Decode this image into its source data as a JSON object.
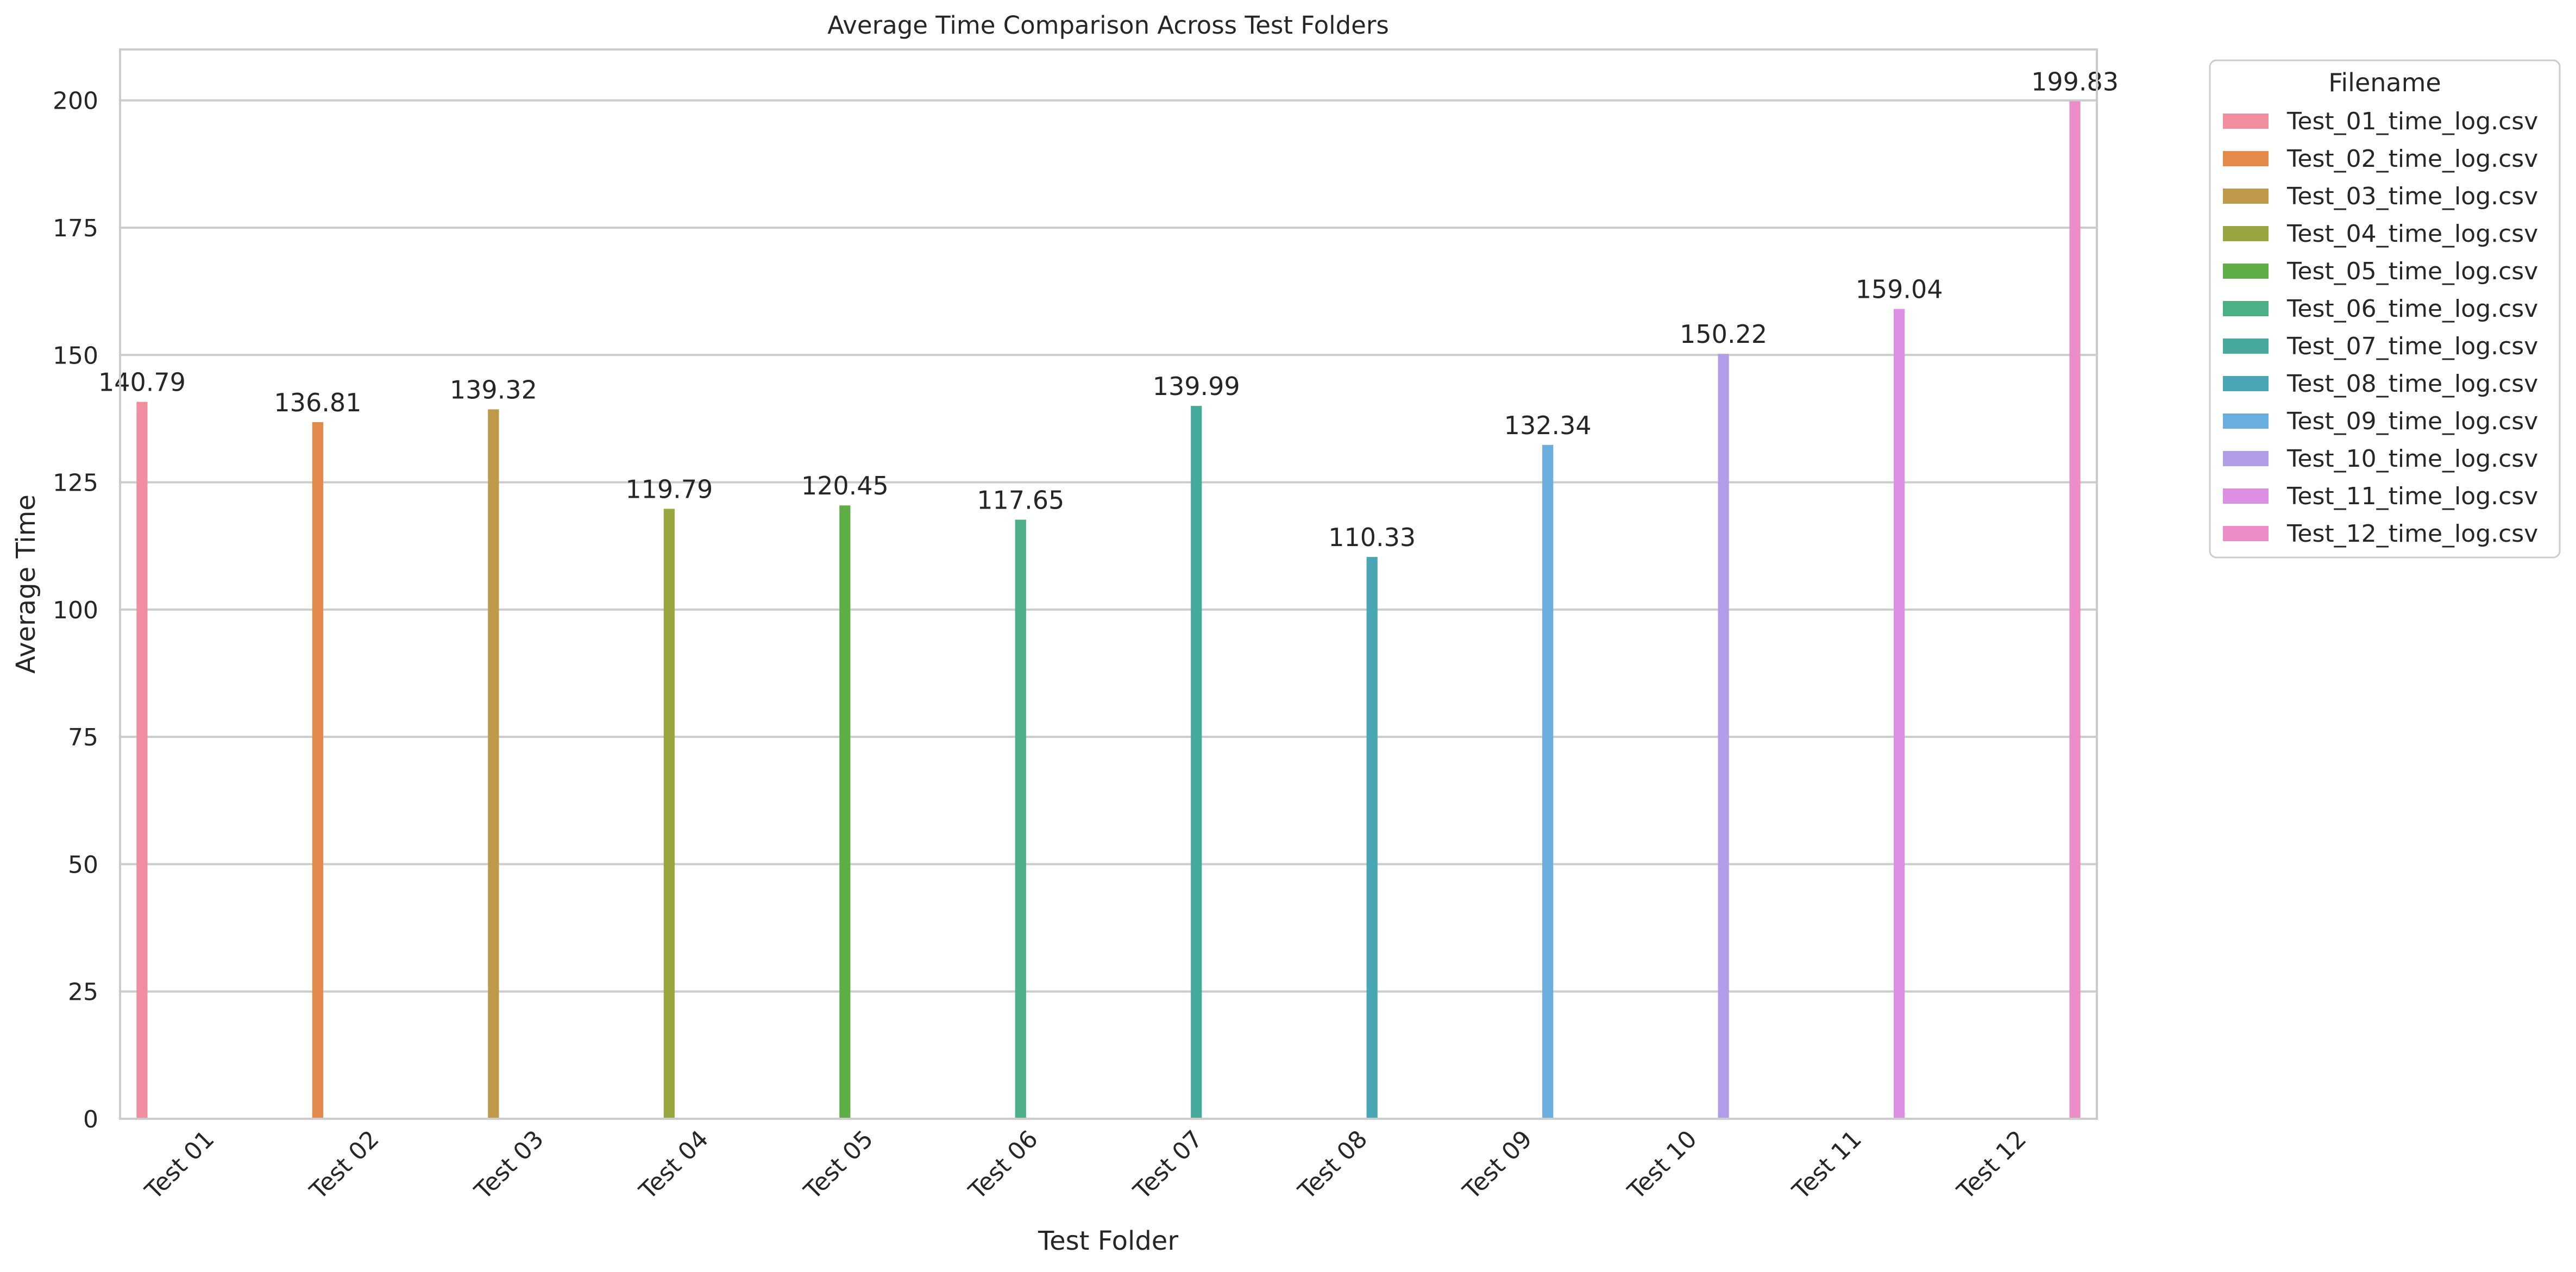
{
  "chart_data": {
    "type": "bar",
    "title": "Average Time Comparison Across Test Folders",
    "xlabel": "Test Folder",
    "ylabel": "Average Time",
    "ylim": [
      0,
      210
    ],
    "yticks": [
      0,
      25,
      50,
      75,
      100,
      125,
      150,
      175,
      200
    ],
    "ytick_labels": [
      "0",
      "25",
      "50",
      "75",
      "100",
      "125",
      "150",
      "175",
      "200"
    ],
    "grid": "horizontal",
    "legend_title": "Filename",
    "legend_position": "outside-top-right",
    "categories": [
      "Test 01",
      "Test 02",
      "Test 03",
      "Test 04",
      "Test 05",
      "Test 06",
      "Test 07",
      "Test 08",
      "Test 09",
      "Test 10",
      "Test 11",
      "Test 12"
    ],
    "series": [
      {
        "name": "Test_01_time_log.csv",
        "color": "#f08ea0",
        "category": "Test 01",
        "value": 140.79,
        "label": "140.79"
      },
      {
        "name": "Test_02_time_log.csv",
        "color": "#e38a4a",
        "category": "Test 02",
        "value": 136.81,
        "label": "136.81"
      },
      {
        "name": "Test_03_time_log.csv",
        "color": "#be9a4a",
        "category": "Test 03",
        "value": 139.32,
        "label": "139.32"
      },
      {
        "name": "Test_04_time_log.csv",
        "color": "#9aa53f",
        "category": "Test 04",
        "value": 119.79,
        "label": "119.79"
      },
      {
        "name": "Test_05_time_log.csv",
        "color": "#5fae45",
        "category": "Test 05",
        "value": 120.45,
        "label": "120.45"
      },
      {
        "name": "Test_06_time_log.csv",
        "color": "#4caf86",
        "category": "Test 06",
        "value": 117.65,
        "label": "117.65"
      },
      {
        "name": "Test_07_time_log.csv",
        "color": "#45aa9c",
        "category": "Test 07",
        "value": 139.99,
        "label": "139.99"
      },
      {
        "name": "Test_08_time_log.csv",
        "color": "#49a7b5",
        "category": "Test 08",
        "value": 110.33,
        "label": "110.33"
      },
      {
        "name": "Test_09_time_log.csv",
        "color": "#6aaee0",
        "category": "Test 09",
        "value": 132.34,
        "label": "132.34"
      },
      {
        "name": "Test_10_time_log.csv",
        "color": "#b29ee8",
        "category": "Test 10",
        "value": 150.22,
        "label": "150.22"
      },
      {
        "name": "Test_11_time_log.csv",
        "color": "#dc8fe3",
        "category": "Test 11",
        "value": 159.04,
        "label": "159.04"
      },
      {
        "name": "Test_12_time_log.csv",
        "color": "#ec8dc8",
        "category": "Test 12",
        "value": 199.83,
        "label": "199.83"
      }
    ]
  }
}
